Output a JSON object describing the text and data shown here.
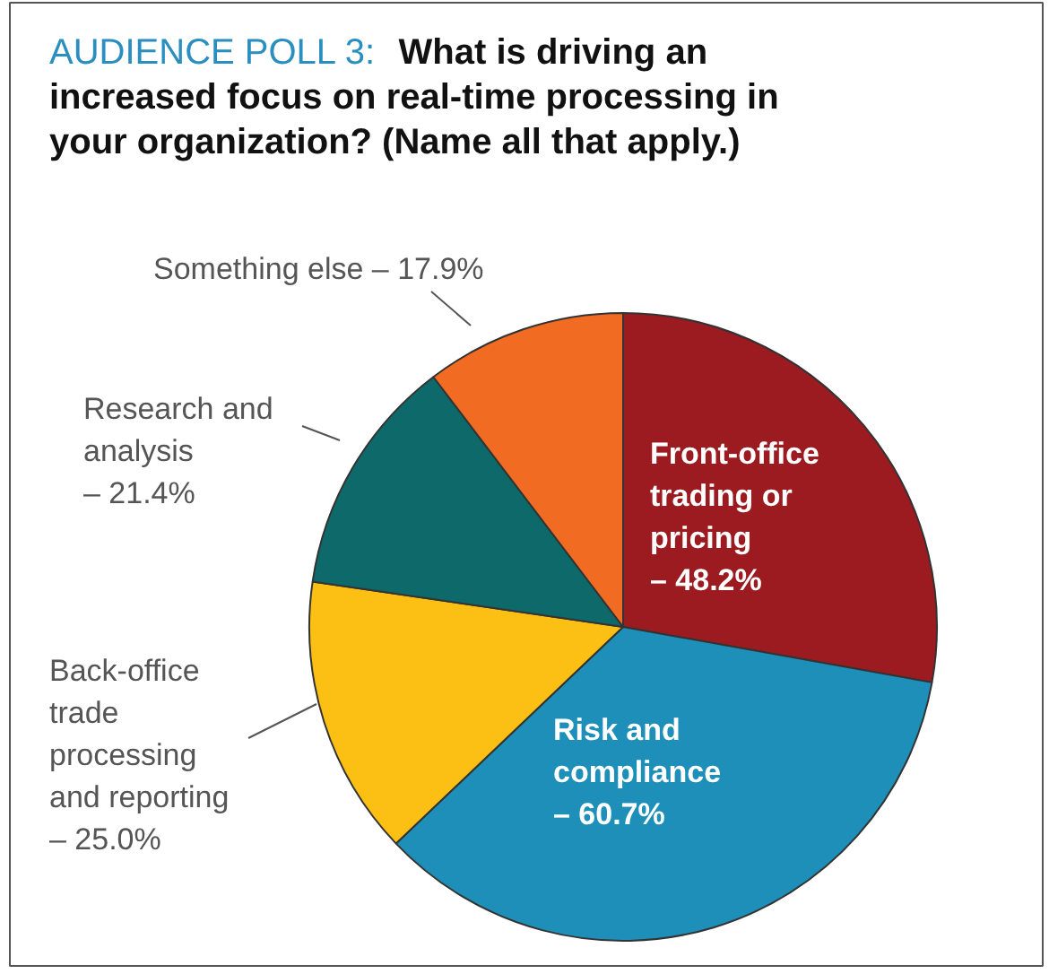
{
  "chart_data": {
    "type": "pie",
    "title": "AUDIENCE POLL 3:",
    "subtitle": "What is driving an increased focus on real-time processing in your organization? (Name all that apply.)",
    "categories": [
      "Front-office trading or pricing –",
      "Risk and compliance –",
      "Back-office trade processing and reporting –",
      "Research and analysis –",
      "Something else –"
    ],
    "values": [
      48.2,
      60.7,
      25.0,
      21.4,
      17.9
    ],
    "colors": [
      "#9b1b20",
      "#1d8fb8",
      "#fcbf14",
      "#0e6a6a",
      "#f26b22"
    ],
    "value_labels": [
      "48.2%",
      "60.7%",
      "25.0%",
      "21.4%",
      "17.9%"
    ]
  }
}
